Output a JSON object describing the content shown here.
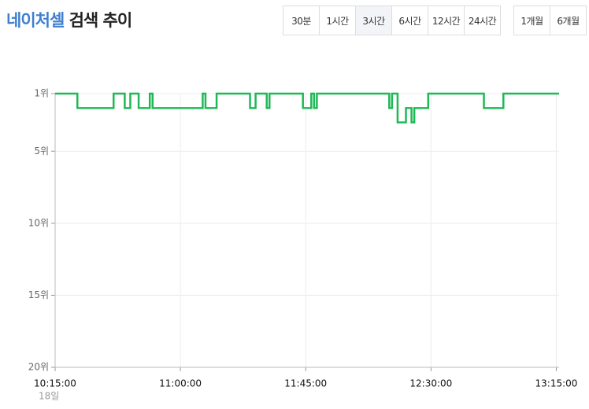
{
  "header": {
    "title_highlight": "네이처셀",
    "title": "검색 추이"
  },
  "controls": {
    "groups": [
      [
        "30분",
        "1시간",
        "3시간",
        "6시간",
        "12시간",
        "24시간"
      ],
      [
        "1개월",
        "6개월"
      ]
    ],
    "selected": "3시간"
  },
  "chart_data": {
    "type": "step-line",
    "x": [
      "10:15:00",
      "10:23:00",
      "10:36:00",
      "10:40:00",
      "10:42:00",
      "10:45:00",
      "10:49:00",
      "10:50:00",
      "11:08:00",
      "11:09:00",
      "11:13:00",
      "11:25:00",
      "11:27:00",
      "11:31:00",
      "11:32:00",
      "11:44:00",
      "11:47:00",
      "11:48:00",
      "11:49:00",
      "12:15:00",
      "12:16:00",
      "12:18:00",
      "12:21:00",
      "12:23:00",
      "12:24:00",
      "12:29:00",
      "12:49:00",
      "12:56:00",
      "13:16:00"
    ],
    "series": [
      {
        "color": "#1db954",
        "values": [
          1,
          2,
          1,
          2,
          1,
          2,
          1,
          2,
          1,
          2,
          1,
          2,
          1,
          2,
          1,
          2,
          1,
          2,
          1,
          2,
          1,
          3,
          2,
          3,
          2,
          1,
          2,
          1,
          1
        ]
      }
    ],
    "xlim": [
      "10:15:00",
      "13:16:00"
    ],
    "xticks": [
      "10:15:00",
      "11:00:00",
      "11:45:00",
      "12:30:00",
      "13:15:00"
    ],
    "x_sublabel": "18일",
    "ylim": [
      1,
      20
    ],
    "y_inverted": true,
    "yticks": [
      {
        "value": 1,
        "label": "1위"
      },
      {
        "value": 5,
        "label": "5위"
      },
      {
        "value": 10,
        "label": "10위"
      },
      {
        "value": 15,
        "label": "15위"
      },
      {
        "value": 20,
        "label": "20위"
      }
    ],
    "grid": true
  }
}
